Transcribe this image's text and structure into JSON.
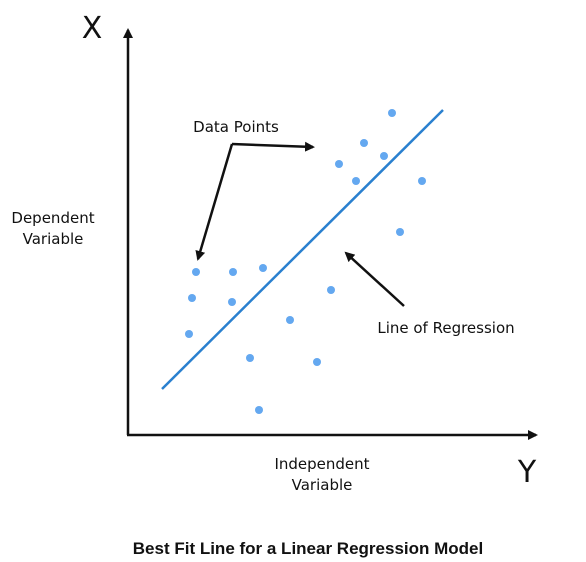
{
  "diagram": {
    "caption": "Best Fit Line for a Linear Regression Model",
    "vertical_axis_letter": "X",
    "horizontal_axis_letter": "Y",
    "vertical_axis_label_lines": [
      "Dependent",
      "Variable"
    ],
    "horizontal_axis_label_lines": [
      "Independent",
      "Variable"
    ],
    "callout_data_points": "Data Points",
    "callout_regression_line": "Line of Regression"
  },
  "colors": {
    "points": "#64a8f0",
    "regression_line": "#2a80cf",
    "axes": "#111111",
    "text": "#111111"
  }
}
